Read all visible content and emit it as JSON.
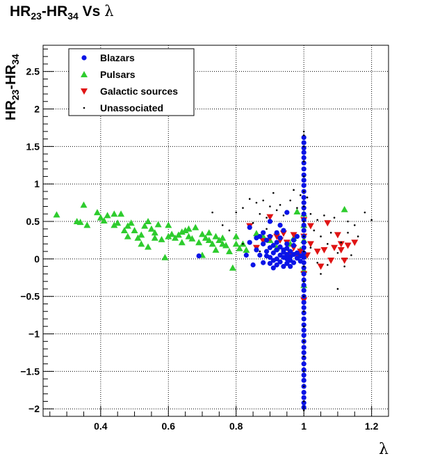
{
  "chart_data": {
    "type": "scatter",
    "title": {
      "p1": "HR",
      "s1": "23",
      "p2": "-HR",
      "s2": "34",
      "p3": " Vs ",
      "greek": "λ"
    },
    "ylabel": {
      "p1": "HR",
      "s1": "23",
      "p2": "-HR",
      "s2": "34"
    },
    "xlabel": "λ",
    "xlim": [
      0.23,
      1.25
    ],
    "ylim": [
      -2.1,
      2.85
    ],
    "x_ticks": [
      0.4,
      0.6,
      0.8,
      1,
      1.2
    ],
    "x_tick_labels": [
      "0.4",
      "0.6",
      "0.8",
      "1",
      "1.2"
    ],
    "y_ticks": [
      -2,
      -1.5,
      -1,
      -0.5,
      0,
      0.5,
      1,
      1.5,
      2,
      2.5
    ],
    "y_tick_labels": [
      "−2",
      "−1.5",
      "−1",
      "−0.5",
      "0",
      "0.5",
      "1",
      "1.5",
      "2",
      "2.5"
    ],
    "grid": true,
    "legend_position": "top-left",
    "series": [
      {
        "name": "Blazars",
        "marker": "circle",
        "color": "#0a14e6",
        "points": [
          [
            1,
            1.48
          ],
          [
            1,
            1.42
          ],
          [
            1,
            1.35
          ],
          [
            1,
            1.28
          ],
          [
            1,
            1.2
          ],
          [
            1,
            1.12
          ],
          [
            1,
            1.05
          ],
          [
            1,
            0.98
          ],
          [
            1,
            0.9
          ],
          [
            1,
            0.82
          ],
          [
            1,
            0.75
          ],
          [
            1,
            0.68
          ],
          [
            1,
            0.6
          ],
          [
            1,
            0.52
          ],
          [
            1,
            0.45
          ],
          [
            1,
            0.38
          ],
          [
            1,
            0.3
          ],
          [
            1,
            0.22
          ],
          [
            1,
            0.15
          ],
          [
            1,
            0.08
          ],
          [
            1,
            0.02
          ],
          [
            1,
            -0.05
          ],
          [
            1,
            -0.12
          ],
          [
            1,
            -0.2
          ],
          [
            1,
            -0.28
          ],
          [
            1,
            -0.35
          ],
          [
            1,
            -0.42
          ],
          [
            1,
            -0.5
          ],
          [
            1,
            -0.58
          ],
          [
            1,
            -0.65
          ],
          [
            1,
            -0.72
          ],
          [
            1,
            -0.8
          ],
          [
            1,
            -0.88
          ],
          [
            1,
            -0.95
          ],
          [
            1,
            -1.02
          ],
          [
            1,
            -1.1
          ],
          [
            1,
            -1.18
          ],
          [
            1,
            -1.25
          ],
          [
            1,
            -1.32
          ],
          [
            1,
            -1.4
          ],
          [
            1,
            -1.48
          ],
          [
            1,
            -1.55
          ],
          [
            1,
            -1.62
          ],
          [
            1,
            -1.7
          ],
          [
            1,
            -1.78
          ],
          [
            1,
            -1.85
          ],
          [
            1,
            -1.92
          ],
          [
            1,
            -1.98
          ],
          [
            1,
            1.62
          ],
          [
            1,
            1.55
          ],
          [
            0.86,
            0.12
          ],
          [
            0.87,
            0.05
          ],
          [
            0.88,
            0.2
          ],
          [
            0.88,
            -0.05
          ],
          [
            0.89,
            0.1
          ],
          [
            0.9,
            0.02
          ],
          [
            0.9,
            0.15
          ],
          [
            0.91,
            -0.02
          ],
          [
            0.91,
            0.08
          ],
          [
            0.92,
            0.0
          ],
          [
            0.92,
            0.12
          ],
          [
            0.93,
            0.05
          ],
          [
            0.93,
            -0.04
          ],
          [
            0.94,
            0.02
          ],
          [
            0.94,
            0.09
          ],
          [
            0.95,
            0.0
          ],
          [
            0.95,
            -0.06
          ],
          [
            0.95,
            0.14
          ],
          [
            0.96,
            0.03
          ],
          [
            0.96,
            -0.02
          ],
          [
            0.97,
            0.06
          ],
          [
            0.97,
            -0.05
          ],
          [
            0.98,
            0.01
          ],
          [
            0.98,
            0.08
          ],
          [
            0.99,
            -0.03
          ],
          [
            0.99,
            0.04
          ],
          [
            0.92,
            0.22
          ],
          [
            0.9,
            0.3
          ],
          [
            0.88,
            0.35
          ],
          [
            0.93,
            0.28
          ],
          [
            0.95,
            0.2
          ],
          [
            0.97,
            0.18
          ],
          [
            0.94,
            -0.1
          ],
          [
            0.91,
            -0.12
          ],
          [
            0.96,
            -0.1
          ],
          [
            0.89,
            0.25
          ],
          [
            0.87,
            0.3
          ],
          [
            0.92,
            0.35
          ],
          [
            0.94,
            0.38
          ],
          [
            0.83,
            0.05
          ],
          [
            0.84,
            0.22
          ],
          [
            0.85,
            -0.08
          ],
          [
            0.93,
            0.45
          ],
          [
            0.9,
            0.5
          ],
          [
            0.84,
            0.42
          ],
          [
            0.69,
            0.04
          ],
          [
            0.95,
            0.62
          ],
          [
            0.98,
            0.3
          ],
          [
            0.97,
            0.25
          ],
          [
            0.86,
            0.28
          ],
          [
            0.91,
            0.18
          ],
          [
            0.93,
            0.16
          ],
          [
            0.96,
            0.1
          ],
          [
            0.9,
            -0.06
          ],
          [
            0.92,
            -0.08
          ],
          [
            0.95,
            0.06
          ],
          [
            0.89,
            0.04
          ],
          [
            0.94,
            0.12
          ]
        ]
      },
      {
        "name": "Pulsars",
        "marker": "triangle-up",
        "color": "#2ecc2e",
        "points": [
          [
            0.27,
            0.59
          ],
          [
            0.33,
            0.5
          ],
          [
            0.34,
            0.49
          ],
          [
            0.35,
            0.72
          ],
          [
            0.39,
            0.62
          ],
          [
            0.4,
            0.55
          ],
          [
            0.41,
            0.51
          ],
          [
            0.42,
            0.58
          ],
          [
            0.44,
            0.6
          ],
          [
            0.45,
            0.48
          ],
          [
            0.46,
            0.6
          ],
          [
            0.47,
            0.38
          ],
          [
            0.48,
            0.3
          ],
          [
            0.49,
            0.48
          ],
          [
            0.5,
            0.38
          ],
          [
            0.51,
            0.28
          ],
          [
            0.52,
            0.2
          ],
          [
            0.53,
            0.44
          ],
          [
            0.54,
            0.5
          ],
          [
            0.55,
            0.4
          ],
          [
            0.56,
            0.35
          ],
          [
            0.57,
            0.46
          ],
          [
            0.58,
            0.26
          ],
          [
            0.59,
            0.02
          ],
          [
            0.6,
            0.3
          ],
          [
            0.61,
            0.33
          ],
          [
            0.62,
            0.28
          ],
          [
            0.63,
            0.32
          ],
          [
            0.64,
            0.22
          ],
          [
            0.65,
            0.38
          ],
          [
            0.66,
            0.3
          ],
          [
            0.67,
            0.27
          ],
          [
            0.68,
            0.42
          ],
          [
            0.69,
            0.22
          ],
          [
            0.7,
            0.33
          ],
          [
            0.71,
            0.28
          ],
          [
            0.72,
            0.35
          ],
          [
            0.73,
            0.2
          ],
          [
            0.74,
            0.3
          ],
          [
            0.75,
            0.25
          ],
          [
            0.76,
            0.28
          ],
          [
            0.77,
            0.18
          ],
          [
            0.78,
            0.1
          ],
          [
            0.79,
            -0.12
          ],
          [
            0.8,
            0.3
          ],
          [
            0.81,
            0.14
          ],
          [
            0.82,
            0.2
          ],
          [
            0.83,
            0.12
          ],
          [
            0.86,
            0.34
          ],
          [
            0.88,
            0.3
          ],
          [
            0.9,
            0.25
          ],
          [
            0.92,
            0.15
          ],
          [
            0.96,
            0.2
          ],
          [
            0.97,
            0.28
          ],
          [
            0.99,
            0.12
          ],
          [
            1,
            0.05
          ],
          [
            1,
            -0.15
          ],
          [
            1,
            -0.35
          ],
          [
            1,
            0.25
          ],
          [
            1,
            0.45
          ],
          [
            1,
            0.6
          ],
          [
            1.12,
            0.66
          ],
          [
            0.98,
            0.63
          ],
          [
            0.44,
            0.45
          ],
          [
            0.52,
            0.32
          ],
          [
            0.36,
            0.45
          ],
          [
            0.6,
            0.45
          ],
          [
            0.64,
            0.36
          ],
          [
            0.72,
            0.25
          ],
          [
            0.76,
            0.2
          ],
          [
            0.8,
            0.2
          ],
          [
            0.74,
            0.12
          ],
          [
            0.66,
            0.4
          ],
          [
            0.7,
            0.05
          ],
          [
            0.56,
            0.28
          ],
          [
            0.54,
            0.16
          ],
          [
            0.48,
            0.44
          ]
        ]
      },
      {
        "name": "Galactic sources",
        "marker": "triangle-down",
        "color": "#e01414",
        "points": [
          [
            0.84,
            0.44
          ],
          [
            0.86,
            0.15
          ],
          [
            0.88,
            0.24
          ],
          [
            0.9,
            0.28
          ],
          [
            0.92,
            0.3
          ],
          [
            0.93,
            0.25
          ],
          [
            0.95,
            0.22
          ],
          [
            0.96,
            0.08
          ],
          [
            0.97,
            0.15
          ],
          [
            0.98,
            0.05
          ],
          [
            0.99,
            0.1
          ],
          [
            1,
            0.52
          ],
          [
            1,
            0.3
          ],
          [
            1,
            -0.2
          ],
          [
            1,
            -0.55
          ],
          [
            1.01,
            0.05
          ],
          [
            1.02,
            0.2
          ],
          [
            1.04,
            0.1
          ],
          [
            1.05,
            -0.1
          ],
          [
            1.06,
            0.12
          ],
          [
            1.07,
            0.48
          ],
          [
            1.08,
            -0.02
          ],
          [
            1.1,
            0.32
          ],
          [
            1.11,
            0.2
          ],
          [
            1.12,
            -0.02
          ],
          [
            1.13,
            0.18
          ],
          [
            1.15,
            0.22
          ],
          [
            1.02,
            0.44
          ],
          [
            1.09,
            0.15
          ],
          [
            0.94,
            0.34
          ],
          [
            0.97,
            0.32
          ],
          [
            0.9,
            0.56
          ],
          [
            1.11,
            0.12
          ]
        ]
      },
      {
        "name": "Unassociated",
        "marker": "dot",
        "color": "#000000",
        "points": [
          [
            1,
            1.7
          ],
          [
            1,
            1.65
          ],
          [
            1,
            1.5
          ],
          [
            1,
            1.3
          ],
          [
            1,
            1.1
          ],
          [
            1,
            0.9
          ],
          [
            1,
            0.7
          ],
          [
            1,
            0.5
          ],
          [
            1,
            0.3
          ],
          [
            1,
            0.1
          ],
          [
            1,
            -0.1
          ],
          [
            1,
            -0.3
          ],
          [
            1,
            -0.5
          ],
          [
            1,
            -0.7
          ],
          [
            1,
            -0.9
          ],
          [
            1,
            -1.1
          ],
          [
            1,
            -1.3
          ],
          [
            1,
            -1.5
          ],
          [
            1,
            -1.7
          ],
          [
            1,
            -1.9
          ],
          [
            1,
            -2.02
          ],
          [
            0.8,
            0.62
          ],
          [
            0.82,
            0.68
          ],
          [
            0.84,
            0.8
          ],
          [
            0.86,
            0.75
          ],
          [
            0.87,
            0.6
          ],
          [
            0.88,
            0.78
          ],
          [
            0.89,
            0.55
          ],
          [
            0.9,
            0.7
          ],
          [
            0.91,
            0.88
          ],
          [
            0.92,
            0.65
          ],
          [
            0.93,
            0.72
          ],
          [
            0.94,
            0.58
          ],
          [
            0.96,
            0.78
          ],
          [
            0.97,
            0.92
          ],
          [
            0.98,
            0.68
          ],
          [
            0.82,
            0.2
          ],
          [
            0.85,
            0.48
          ],
          [
            0.87,
            0.1
          ],
          [
            0.89,
            0.4
          ],
          [
            1.02,
            0.6
          ],
          [
            1.03,
            0.38
          ],
          [
            1.04,
            0.52
          ],
          [
            1.05,
            0.3
          ],
          [
            1.06,
            0.58
          ],
          [
            1.07,
            0.2
          ],
          [
            1.08,
            0.35
          ],
          [
            1.09,
            0.55
          ],
          [
            1.1,
            0.08
          ],
          [
            1.11,
            0.22
          ],
          [
            1.12,
            -0.1
          ],
          [
            1.13,
            0.35
          ],
          [
            1.14,
            0.05
          ],
          [
            1.15,
            0.45
          ],
          [
            1.1,
            -0.4
          ],
          [
            1.05,
            -0.2
          ],
          [
            1.2,
            0.52
          ],
          [
            1.18,
            0.62
          ],
          [
            0.73,
            0.62
          ],
          [
            0.78,
            0.38
          ],
          [
            0.76,
            0.45
          ],
          [
            0.99,
            0.85
          ],
          [
            1.01,
            0.82
          ],
          [
            1.04,
            -0.05
          ],
          [
            1.07,
            -0.08
          ],
          [
            1.13,
            0.5
          ],
          [
            1.16,
            0.3
          ],
          [
            1.02,
            0.15
          ]
        ]
      }
    ]
  }
}
